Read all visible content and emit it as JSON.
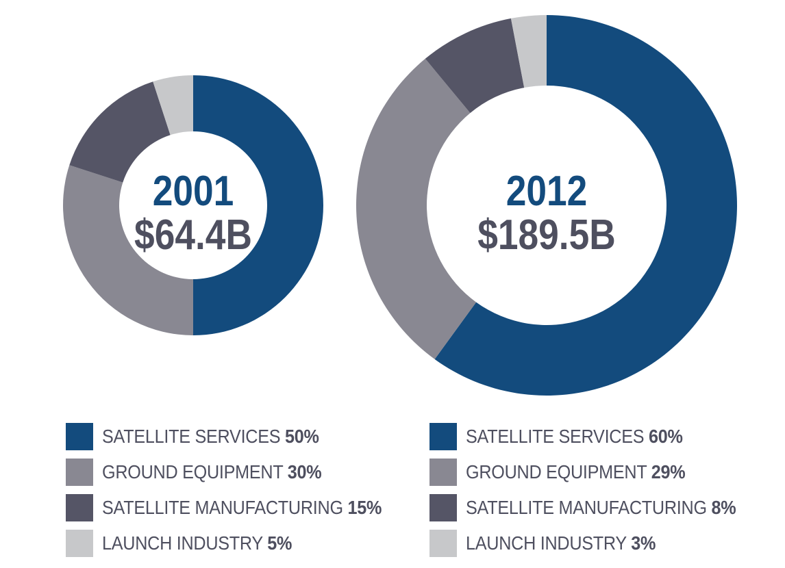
{
  "colors": {
    "satellite_services": "#134b7d",
    "ground_equipment": "#898892",
    "satellite_manufacturing": "#555566",
    "launch_industry": "#c7c8ca",
    "year_text": "#134b7d",
    "value_text": "#4e4f5f"
  },
  "chart_data": [
    {
      "type": "pie",
      "center_title": "2001",
      "center_value": "$64.4B",
      "slices": [
        {
          "label": "SATELLITE SERVICES",
          "value": 50,
          "display": "50%",
          "color_key": "satellite_services"
        },
        {
          "label": "GROUND EQUIPMENT",
          "value": 30,
          "display": "30%",
          "color_key": "ground_equipment"
        },
        {
          "label": "SATELLITE MANUFACTURING",
          "value": 15,
          "display": "15%",
          "color_key": "satellite_manufacturing"
        },
        {
          "label": "LAUNCH INDUSTRY",
          "value": 5,
          "display": "5%",
          "color_key": "launch_industry"
        }
      ]
    },
    {
      "type": "pie",
      "center_title": "2012",
      "center_value": "$189.5B",
      "slices": [
        {
          "label": "SATELLITE SERVICES",
          "value": 60,
          "display": "60%",
          "color_key": "satellite_services"
        },
        {
          "label": "GROUND EQUIPMENT",
          "value": 29,
          "display": "29%",
          "color_key": "ground_equipment"
        },
        {
          "label": "SATELLITE MANUFACTURING",
          "value": 8,
          "display": "8%",
          "color_key": "satellite_manufacturing"
        },
        {
          "label": "LAUNCH INDUSTRY",
          "value": 3,
          "display": "3%",
          "color_key": "launch_industry"
        }
      ]
    }
  ]
}
